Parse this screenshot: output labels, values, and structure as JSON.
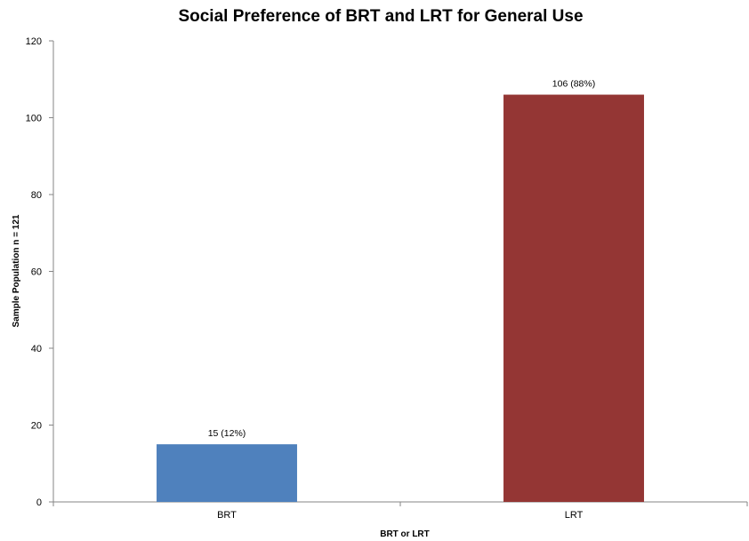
{
  "chart_data": {
    "type": "bar",
    "title": "Social Preference of BRT and LRT for General Use",
    "xlabel": "BRT or LRT",
    "ylabel": "Sample Population n = 121",
    "categories": [
      "BRT",
      "LRT"
    ],
    "values": [
      15,
      106
    ],
    "data_labels": [
      "15 (12%)",
      "106 (88%)"
    ],
    "colors": [
      "#4F81BD",
      "#943634"
    ],
    "ylim": [
      0,
      120
    ],
    "yticks": [
      0,
      20,
      40,
      60,
      80,
      100,
      120
    ],
    "grid": false,
    "legend": "none"
  }
}
